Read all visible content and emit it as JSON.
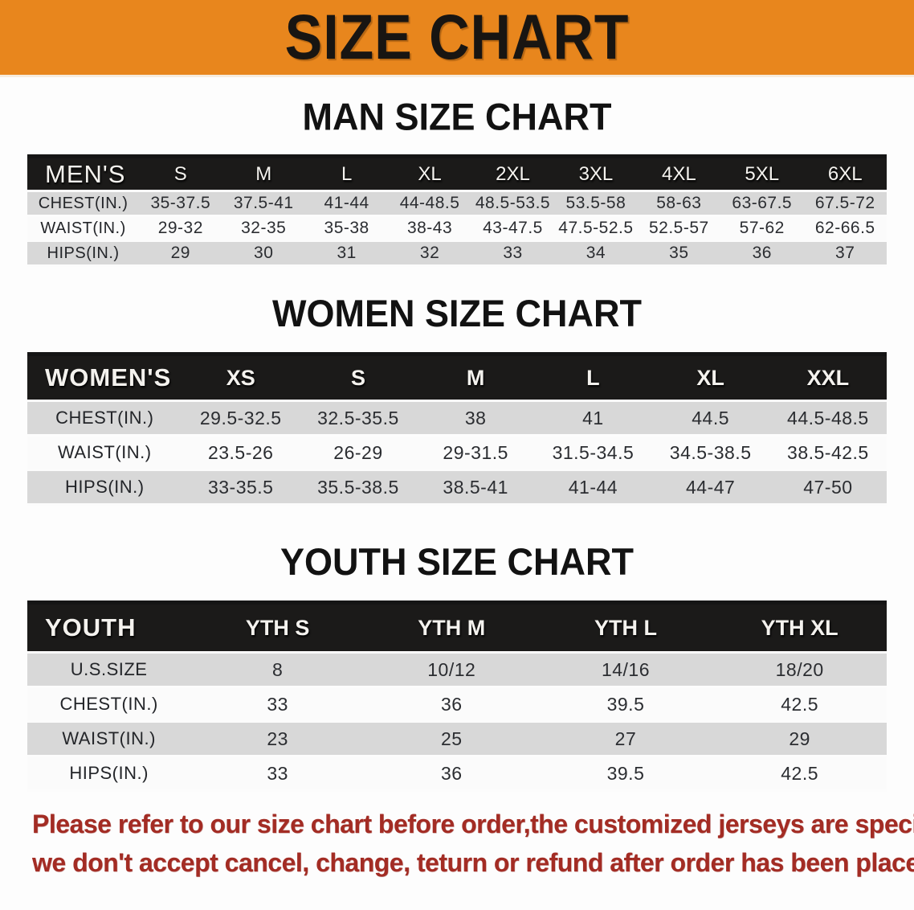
{
  "banner": {
    "title": "SIZE CHART"
  },
  "colors": {
    "banner_bg": "#E8861D",
    "table_header_bg": "#1B1A19",
    "row_stripe_gray": "#D8D8D8",
    "row_stripe_white": "#FBFBFB",
    "notice_red": "#A32C24"
  },
  "sections": [
    {
      "id": "men",
      "title": "MAN SIZE CHART",
      "header_label": "MEN'S",
      "columns": [
        "S",
        "M",
        "L",
        "XL",
        "2XL",
        "3XL",
        "4XL",
        "5XL",
        "6XL"
      ],
      "rows": [
        {
          "label": "CHEST(IN.)",
          "values": [
            "35-37.5",
            "37.5-41",
            "41-44",
            "44-48.5",
            "48.5-53.5",
            "53.5-58",
            "58-63",
            "63-67.5",
            "67.5-72"
          ]
        },
        {
          "label": "WAIST(IN.)",
          "values": [
            "29-32",
            "32-35",
            "35-38",
            "38-43",
            "43-47.5",
            "47.5-52.5",
            "52.5-57",
            "57-62",
            "62-66.5"
          ]
        },
        {
          "label": "HIPS(IN.)",
          "values": [
            "29",
            "30",
            "31",
            "32",
            "33",
            "34",
            "35",
            "36",
            "37"
          ]
        }
      ]
    },
    {
      "id": "women",
      "title": "WOMEN SIZE CHART",
      "header_label": "WOMEN'S",
      "columns": [
        "XS",
        "S",
        "M",
        "L",
        "XL",
        "XXL"
      ],
      "rows": [
        {
          "label": "CHEST(IN.)",
          "values": [
            "29.5-32.5",
            "32.5-35.5",
            "38",
            "41",
            "44.5",
            "44.5-48.5"
          ]
        },
        {
          "label": "WAIST(IN.)",
          "values": [
            "23.5-26",
            "26-29",
            "29-31.5",
            "31.5-34.5",
            "34.5-38.5",
            "38.5-42.5"
          ]
        },
        {
          "label": "HIPS(IN.)",
          "values": [
            "33-35.5",
            "35.5-38.5",
            "38.5-41",
            "41-44",
            "44-47",
            "47-50"
          ]
        }
      ]
    },
    {
      "id": "youth",
      "title": "YOUTH SIZE CHART",
      "header_label": "YOUTH",
      "columns": [
        "YTH S",
        "YTH M",
        "YTH L",
        "YTH XL"
      ],
      "rows": [
        {
          "label": "U.S.SIZE",
          "values": [
            "8",
            "10/12",
            "14/16",
            "18/20"
          ]
        },
        {
          "label": "CHEST(IN.)",
          "values": [
            "33",
            "36",
            "39.5",
            "42.5"
          ]
        },
        {
          "label": "WAIST(IN.)",
          "values": [
            "23",
            "25",
            "27",
            "29"
          ]
        },
        {
          "label": "HIPS(IN.)",
          "values": [
            "33",
            "36",
            "39.5",
            "42.5"
          ]
        }
      ]
    }
  ],
  "footer": {
    "line1": "Please refer to our size chart before order,the customized jerseys are special products,",
    "line2": "we don't accept cancel, change, teturn or refund after order has been placed!"
  }
}
